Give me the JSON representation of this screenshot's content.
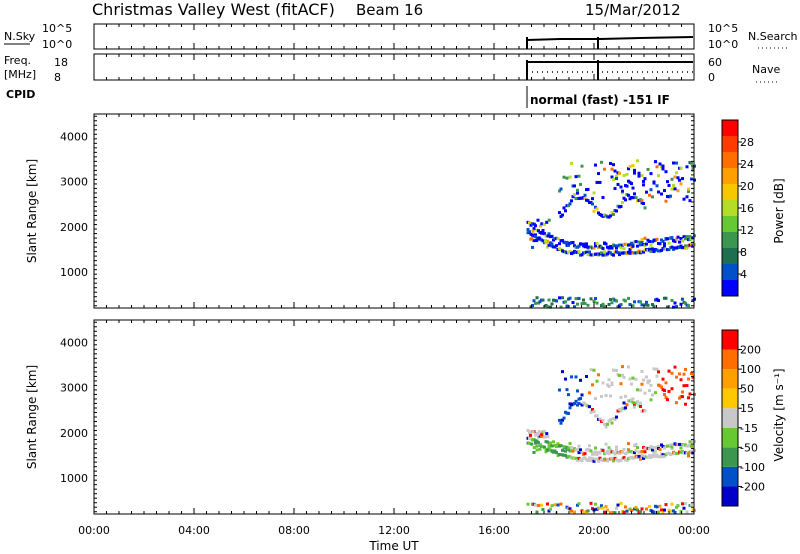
{
  "header": {
    "station": "Christmas Valley West (fitACF)",
    "beam": "Beam 16",
    "date": "15/Mar/2012"
  },
  "top_panels": {
    "nsky_label": "N.Sky",
    "nsky_ticks": [
      "10^5",
      "10^0"
    ],
    "nsky_right_ticks": [
      "10^5",
      "10^0"
    ],
    "nsearch_label": "N.Search",
    "freq_label": "Freq.",
    "freq_unit": "[MHz]",
    "freq_ticks": [
      "18",
      "8"
    ],
    "nave_ticks": [
      "60",
      "0"
    ],
    "nave_label": "Nave",
    "cpid_label": "CPID",
    "cpid_text": "normal (fast) -151 IF"
  },
  "chart_data": [
    {
      "type": "heatmap",
      "name": "power",
      "ylabel": "Slant Range [km]",
      "yticks": [
        1000,
        2000,
        3000,
        4000
      ],
      "ylim": [
        200,
        4500
      ],
      "colorbar_label": "Power [dB]",
      "colorbar_ticks": [
        "28",
        "24",
        "20",
        "16",
        "12",
        "8",
        "4"
      ],
      "colors": [
        "#0000ff",
        "#0050c8",
        "#1e6e50",
        "#3c9650",
        "#66c832",
        "#b4dc28",
        "#f5c800",
        "#ffa000",
        "#ff6e00",
        "#ff3c00",
        "#ff0000"
      ]
    },
    {
      "type": "heatmap",
      "name": "velocity",
      "ylabel": "Slant Range [km]",
      "yticks": [
        1000,
        2000,
        3000,
        4000
      ],
      "ylim": [
        200,
        4500
      ],
      "colorbar_label": "Velocity [m s⁻¹]",
      "colorbar_ticks": [
        "200",
        "100",
        "50",
        "15",
        "-15",
        "-50",
        "-100",
        "-200"
      ],
      "colors": [
        "#0000c8",
        "#0050c8",
        "#3c9650",
        "#66c832",
        "#c8c8c8",
        "#ffc800",
        "#ffa000",
        "#ff6e00",
        "#ff0000"
      ]
    }
  ],
  "xaxis": {
    "label": "Time UT",
    "ticks": [
      "00:00",
      "04:00",
      "08:00",
      "12:00",
      "16:00",
      "20:00",
      "00:00"
    ]
  }
}
